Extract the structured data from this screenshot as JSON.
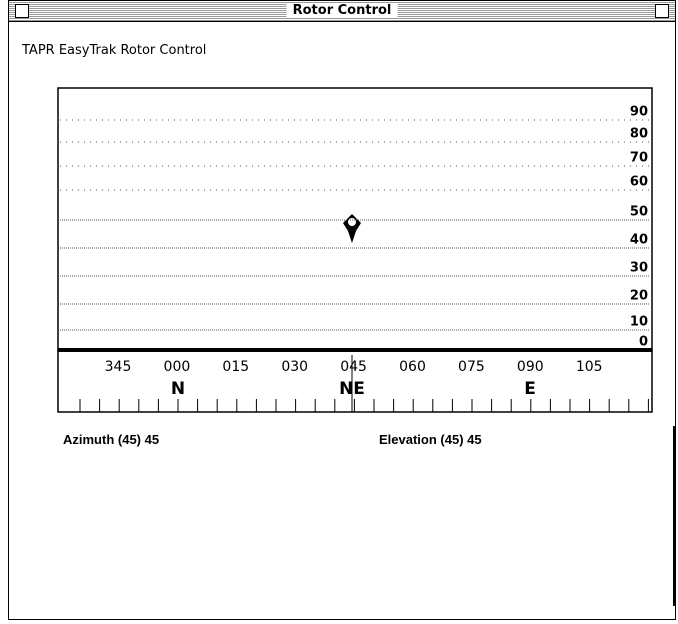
{
  "window": {
    "title": "Rotor Control"
  },
  "app_label": "TAPR EasyTrak Rotor Control",
  "elevation_scale": {
    "labels": [
      "90",
      "80",
      "70",
      "60",
      "50",
      "40",
      "30",
      "20",
      "10",
      "0"
    ]
  },
  "azimuth_scale": {
    "labels": [
      "345",
      "000",
      "015",
      "030",
      "045",
      "060",
      "075",
      "090",
      "105"
    ],
    "compass": [
      "N",
      "NE",
      "E"
    ]
  },
  "readouts": {
    "azimuth": "Azimuth (45) 45",
    "elevation": "Elevation (45) 45"
  }
}
